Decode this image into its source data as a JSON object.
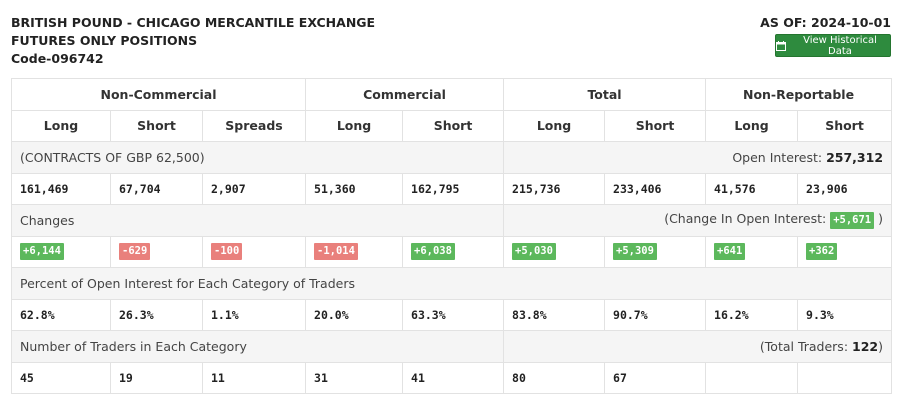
{
  "header": {
    "title_line1": "BRITISH POUND - CHICAGO MERCANTILE EXCHANGE",
    "title_line2": "FUTURES ONLY POSITIONS",
    "code": "Code-096742",
    "as_of": "AS OF: 2024-10-01",
    "historical_button": "View Historical Data",
    "historical_icon": "calendar-icon",
    "button_color": "#2e8b3e"
  },
  "table": {
    "groups": [
      "Non-Commercial",
      "Commercial",
      "Total",
      "Non-Reportable"
    ],
    "columns": [
      "Long",
      "Short",
      "Spreads",
      "Long",
      "Short",
      "Long",
      "Short",
      "Long",
      "Short"
    ],
    "contracts_label": "(CONTRACTS OF GBP 62,500)",
    "open_interest_label": "Open Interest:",
    "open_interest_value": "257,312",
    "positions": [
      "161,469",
      "67,704",
      "2,907",
      "51,360",
      "162,795",
      "215,736",
      "233,406",
      "41,576",
      "23,906"
    ],
    "changes_label": "Changes",
    "change_oi_label": "(Change In Open Interest:",
    "change_oi_value": "+5,671",
    "change_oi_close": ")",
    "changes": [
      {
        "value": "+6,144",
        "sign": "pos"
      },
      {
        "value": "-629",
        "sign": "neg"
      },
      {
        "value": "-100",
        "sign": "neg"
      },
      {
        "value": "-1,014",
        "sign": "neg"
      },
      {
        "value": "+6,038",
        "sign": "pos"
      },
      {
        "value": "+5,030",
        "sign": "pos"
      },
      {
        "value": "+5,309",
        "sign": "pos"
      },
      {
        "value": "+641",
        "sign": "pos"
      },
      {
        "value": "+362",
        "sign": "pos"
      }
    ],
    "percent_label": "Percent of Open Interest for Each Category of Traders",
    "percents": [
      "62.8%",
      "26.3%",
      "1.1%",
      "20.0%",
      "63.3%",
      "83.8%",
      "90.7%",
      "16.2%",
      "9.3%"
    ],
    "traders_label": "Number of Traders in Each Category",
    "total_traders_label": "(Total Traders:",
    "total_traders_value": "122",
    "total_traders_close": ")",
    "traders": [
      "45",
      "19",
      "11",
      "31",
      "41",
      "80",
      "67",
      "",
      ""
    ]
  },
  "colors": {
    "positive": "#5cb85c",
    "negative": "#e9807c",
    "section_bg": "#f5f5f5"
  }
}
